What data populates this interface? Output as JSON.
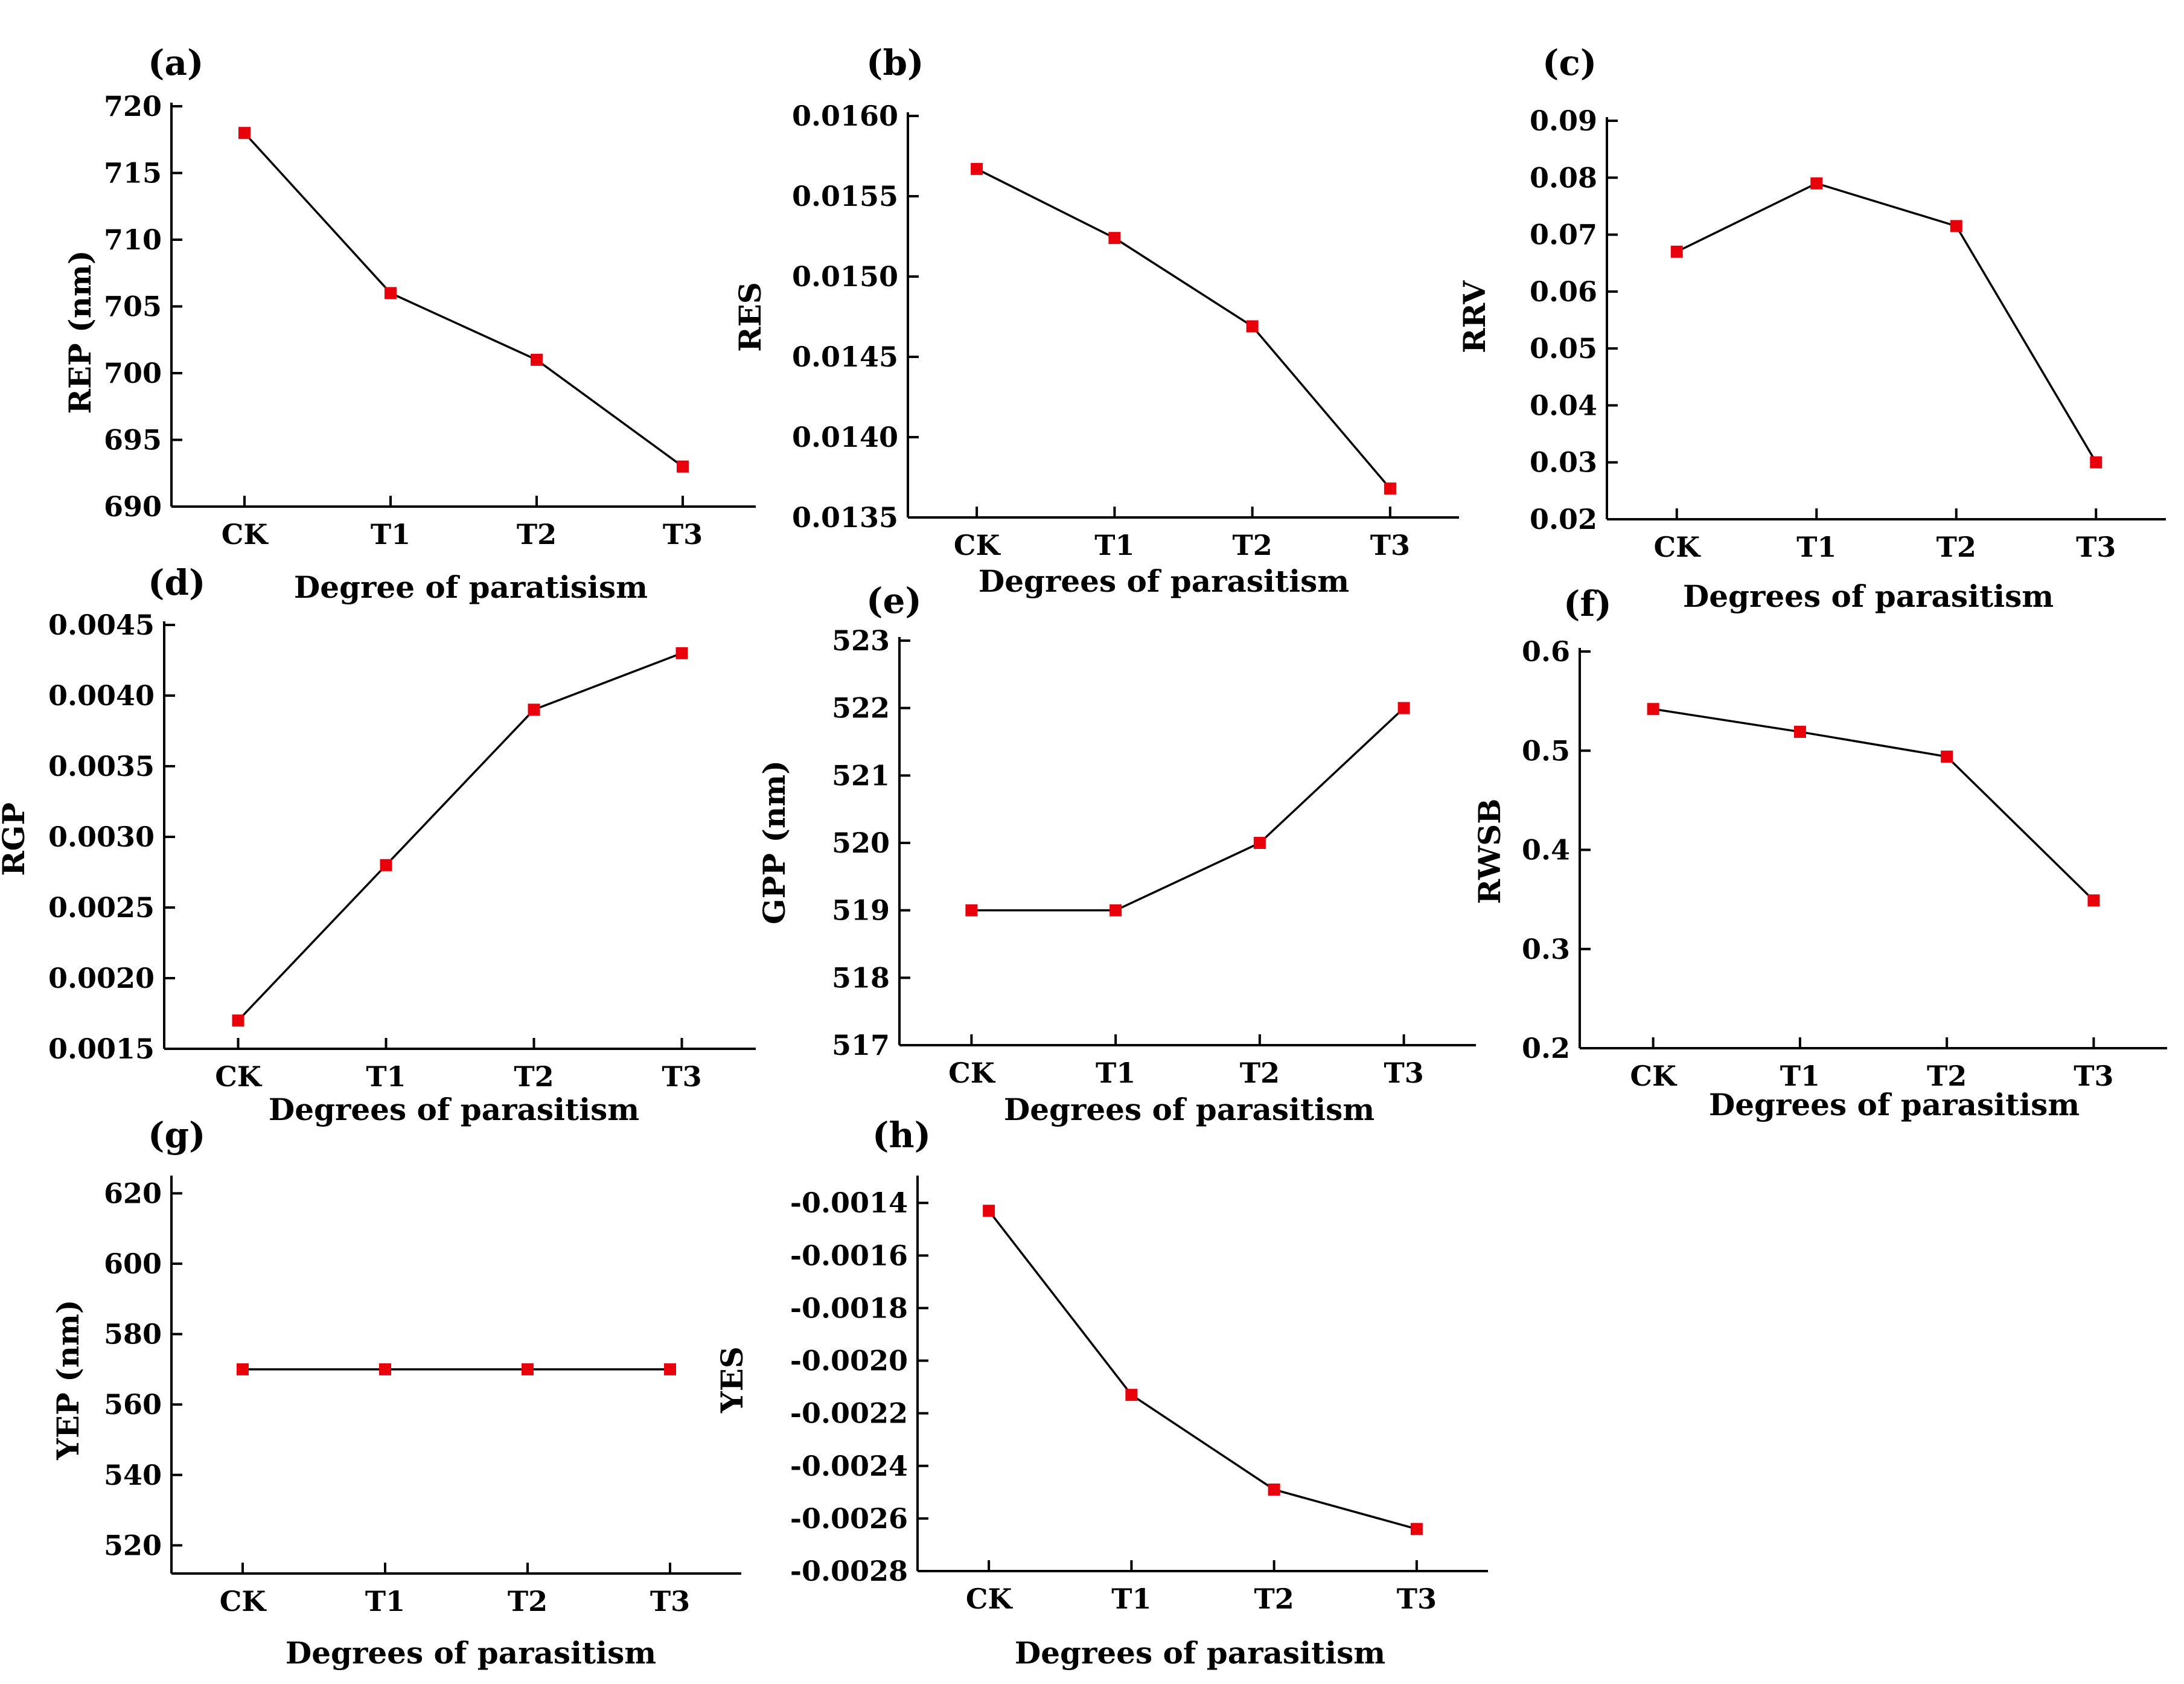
{
  "figure": {
    "colors": {
      "marker": "#e8000b",
      "line": "#000000",
      "axis": "#000000",
      "background": "#ffffff"
    }
  },
  "chart_data": [
    {
      "panel": "(a)",
      "type": "line",
      "categories": [
        "CK",
        "T1",
        "T2",
        "T3"
      ],
      "values": [
        718,
        706,
        701,
        693
      ],
      "xlabel": "Degree of paratisism",
      "ylabel": "REP (nm)",
      "ylim": [
        690,
        720
      ],
      "yticks": [
        "690",
        "695",
        "700",
        "705",
        "710",
        "715",
        "720"
      ]
    },
    {
      "panel": "(b)",
      "type": "line",
      "categories": [
        "CK",
        "T1",
        "T2",
        "T3"
      ],
      "values": [
        0.01567,
        0.01524,
        0.01469,
        0.01368
      ],
      "xlabel": "Degrees of parasitism",
      "ylabel": "RES",
      "ylim": [
        0.0135,
        0.016
      ],
      "yticks": [
        "0.0135",
        "0.0140",
        "0.0145",
        "0.0150",
        "0.0155",
        "0.0160"
      ]
    },
    {
      "panel": "(c)",
      "type": "line",
      "categories": [
        "CK",
        "T1",
        "T2",
        "T3"
      ],
      "values": [
        0.067,
        0.079,
        0.0715,
        0.03
      ],
      "xlabel": "Degrees of parasitism",
      "ylabel": "RRV",
      "ylim": [
        0.02,
        0.09
      ],
      "yticks": [
        "0.02",
        "0.03",
        "0.04",
        "0.05",
        "0.06",
        "0.07",
        "0.08",
        "0.09"
      ]
    },
    {
      "panel": "(d)",
      "type": "line",
      "categories": [
        "CK",
        "T1",
        "T2",
        "T3"
      ],
      "values": [
        0.0017,
        0.0028,
        0.0039,
        0.0043
      ],
      "xlabel": "Degrees of parasitism",
      "ylabel": "RGP",
      "ylim": [
        0.0015,
        0.0045
      ],
      "yticks": [
        "0.0015",
        "0.0020",
        "0.0025",
        "0.0030",
        "0.0035",
        "0.0040",
        "0.0045"
      ]
    },
    {
      "panel": "(e)",
      "type": "line",
      "categories": [
        "CK",
        "T1",
        "T2",
        "T3"
      ],
      "values": [
        519,
        519,
        520,
        522
      ],
      "xlabel": "Degrees of parasitism",
      "ylabel": "GPP (nm)",
      "ylim": [
        517,
        523
      ],
      "yticks": [
        "517",
        "518",
        "519",
        "520",
        "521",
        "522",
        "523"
      ]
    },
    {
      "panel": "(f)",
      "type": "line",
      "categories": [
        "CK",
        "T1",
        "T2",
        "T3"
      ],
      "values": [
        0.542,
        0.519,
        0.494,
        0.349
      ],
      "xlabel": "Degrees of parasitism",
      "ylabel": "RWSB",
      "ylim": [
        0.2,
        0.6
      ],
      "yticks": [
        "0.2",
        "0.3",
        "0.4",
        "0.5",
        "0.6"
      ]
    },
    {
      "panel": "(g)",
      "type": "line",
      "categories": [
        "CK",
        "T1",
        "T2",
        "T3"
      ],
      "values": [
        570,
        570,
        570,
        570
      ],
      "xlabel": "Degrees of parasitism",
      "ylabel": "YEP (nm)",
      "ylim": [
        512,
        624
      ],
      "yticks": [
        "520",
        "540",
        "560",
        "580",
        "600",
        "620"
      ]
    },
    {
      "panel": "(h)",
      "type": "line",
      "categories": [
        "CK",
        "T1",
        "T2",
        "T3"
      ],
      "values": [
        -0.00143,
        -0.00213,
        -0.00249,
        -0.00264
      ],
      "xlabel": "Degrees of parasitism",
      "ylabel": "YES",
      "ylim": [
        -0.0028,
        -0.00131
      ],
      "yticks": [
        "-0.0014",
        "-0.0016",
        "-0.0018",
        "-0.0020",
        "-0.0022",
        "-0.0024",
        "-0.0026",
        "-0.0028"
      ]
    }
  ]
}
